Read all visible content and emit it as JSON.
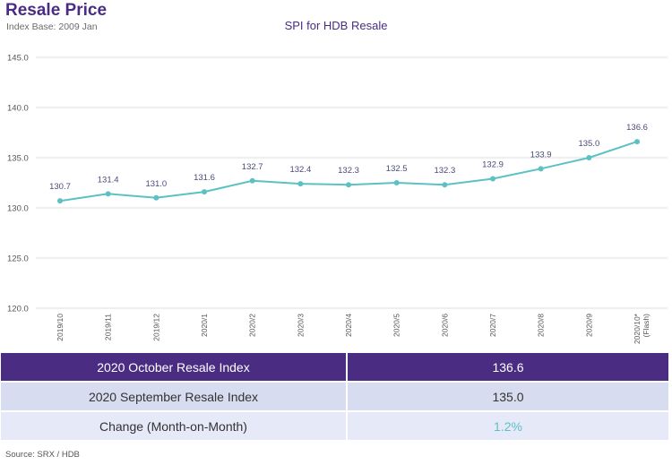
{
  "header": {
    "title": "Resale Price",
    "subtitle": "Index Base: 2009 Jan"
  },
  "chart_data": {
    "type": "line",
    "title": "SPI for HDB Resale",
    "categories": [
      "2019/10",
      "2019/11",
      "2019/12",
      "2020/1",
      "2020/2",
      "2020/3",
      "2020/4",
      "2020/5",
      "2020/6",
      "2020/7",
      "2020/8",
      "2020/9",
      "2020/10*"
    ],
    "category_notes": [
      "",
      "",
      "",
      "",
      "",
      "",
      "",
      "",
      "",
      "",
      "",
      "",
      "(Flash)"
    ],
    "values": [
      130.7,
      131.4,
      131.0,
      131.6,
      132.7,
      132.4,
      132.3,
      132.5,
      132.3,
      132.9,
      133.9,
      135.0,
      136.6
    ],
    "value_labels": [
      "130.7",
      "131.4",
      "131.0",
      "131.6",
      "132.7",
      "132.4",
      "132.3",
      "132.5",
      "132.3",
      "132.9",
      "133.9",
      "135.0",
      "136.6"
    ],
    "yticks": [
      "120.0",
      "125.0",
      "130.0",
      "135.0",
      "140.0",
      "145.0"
    ],
    "ylim": [
      120,
      145
    ],
    "grid": true,
    "line_color": "#5bc1c4"
  },
  "summary": {
    "rows": [
      {
        "label": "2020 October Resale Index",
        "value": "136.6"
      },
      {
        "label": "2020 September Resale Index",
        "value": "135.0"
      },
      {
        "label": "Change (Month-on-Month)",
        "value": "1.2%"
      }
    ]
  },
  "footer": {
    "source": "Source: SRX / HDB"
  },
  "colors": {
    "brand": "#4a2c83",
    "accent": "#5bc1c4",
    "row_light": "#d7dcf1",
    "row_lighter": "#e6e9f7"
  }
}
